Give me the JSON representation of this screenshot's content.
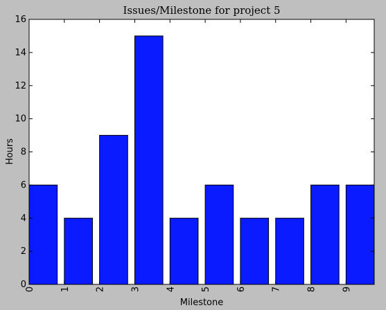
{
  "chart_data": {
    "type": "bar",
    "title": "Issues/Milestone for project 5",
    "xlabel": "Milestone",
    "ylabel": "Hours",
    "categories": [
      "0",
      "1",
      "2",
      "3",
      "4",
      "5",
      "6",
      "7",
      "8",
      "9"
    ],
    "values": [
      6,
      4,
      9,
      15,
      4,
      6,
      4,
      4,
      6,
      6
    ],
    "ylim": [
      0,
      16
    ],
    "yticks": [
      "0",
      "2",
      "4",
      "6",
      "8",
      "10",
      "12",
      "14",
      "16"
    ],
    "xlim": [
      0,
      9.8
    ],
    "bar_width": 0.8,
    "bar_color": "#0a1cff",
    "grid": false,
    "xtick_rotation": 90
  }
}
